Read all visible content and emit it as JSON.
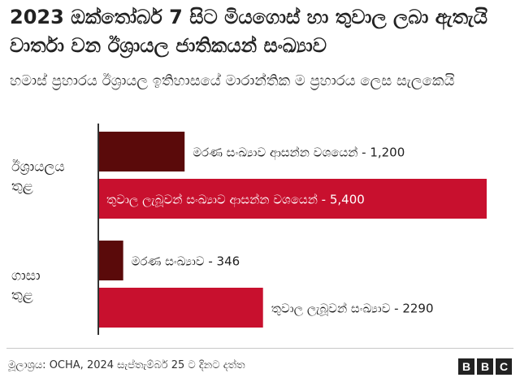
{
  "title": "2023 ඔක්තෝබර් 7 සිට මියගොස් හා තුවාල ලබා ඇතැයි වාර්තා වන ඊශ්‍රායල ජාතිකයන් සංඛ්‍යාව",
  "subtitle": "හමාස් ප්‍රහාරය ඊශ්‍රායල ඉතිහාසයේ මාරාන්තික ම ප්‍රහාරය ලෙස සැලකෙයි",
  "source": "මූලාශ්‍රය: OCHA, 2024 සැප්තැම්බර් 25 ට දිනට දත්ත",
  "logo": [
    "B",
    "B",
    "C"
  ],
  "colors": {
    "deaths": "#5a0a0a",
    "injuries": "#c8102e",
    "axis": "#333333"
  },
  "chart_data": {
    "type": "bar",
    "orientation": "horizontal",
    "xlim": [
      0,
      5400
    ],
    "categories": [
      "ඊශ්‍රායලය තුළ",
      "ගාසා තුළ"
    ],
    "series": [
      {
        "values": [
          1200,
          346
        ],
        "labels": [
          "මරණ සංඛ්‍යාව ආසන්න වශයෙන් - 1,200",
          "මරණ සංඛ්‍යාව - 346"
        ]
      },
      {
        "values": [
          5400,
          2290
        ],
        "labels": [
          "තුවාල ලැබූවන් සංඛ්‍යාව ආසන්න වශයෙන් - 5,400",
          "තුවාල ලැබූවන් සංඛ්‍යාව - 2290"
        ]
      }
    ]
  }
}
